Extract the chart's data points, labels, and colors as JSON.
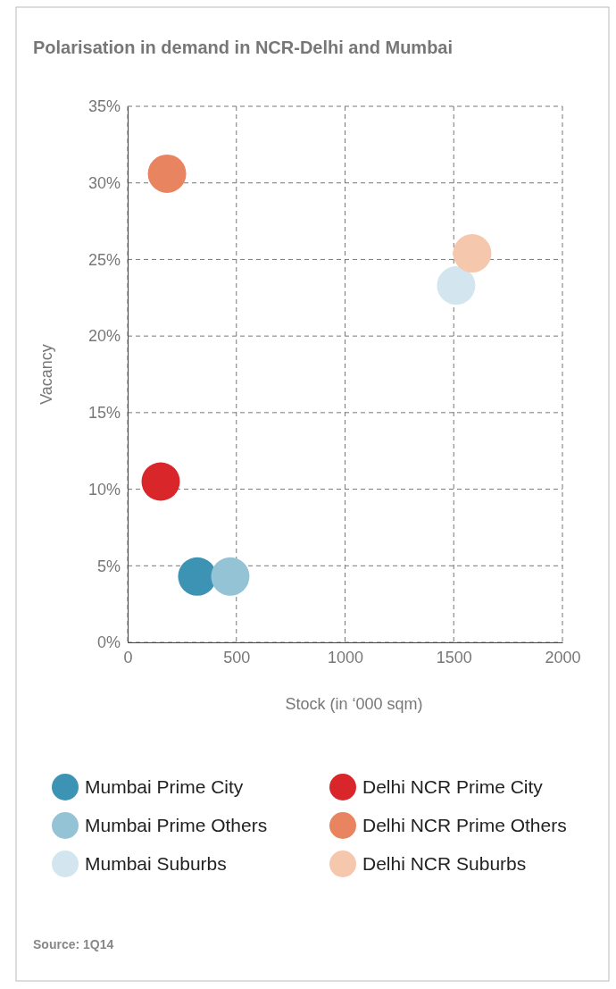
{
  "chart_data": {
    "type": "scatter",
    "title": "Polarisation in demand in NCR-Delhi and Mumbai",
    "xlabel": "Stock (in ‘000 sqm)",
    "ylabel": "Vacancy",
    "annotations": [
      "Source: 1Q14"
    ],
    "xlim": [
      0,
      2000
    ],
    "xticks": [
      0,
      500,
      1000,
      1500,
      2000
    ],
    "ylim": [
      0,
      35
    ],
    "yticks": [
      {
        "value": 0,
        "label": "0%"
      },
      {
        "value": 5,
        "label": "5%"
      },
      {
        "value": 10,
        "label": "10%"
      },
      {
        "value": 15,
        "label": "15%"
      },
      {
        "value": 20,
        "label": "20%"
      },
      {
        "value": 25,
        "label": "25%"
      },
      {
        "value": 30,
        "label": "30%"
      },
      {
        "value": 35,
        "label": "35%"
      }
    ],
    "grid": true,
    "legend": "bottom",
    "marker": "circle",
    "series": [
      {
        "name": "Mumbai Prime City",
        "color": "#3d93b4",
        "x": [
          320
        ],
        "values": [
          4.3
        ]
      },
      {
        "name": "Mumbai Prime Others",
        "color": "#94c3d6",
        "x": [
          472
        ],
        "values": [
          4.3
        ]
      },
      {
        "name": "Mumbai Suburbs",
        "color": "#d3e5ee",
        "x": [
          1511
        ],
        "values": [
          23.3
        ]
      },
      {
        "name": "Delhi NCR Prime City",
        "color": "#d9262b",
        "x": [
          152
        ],
        "values": [
          10.5
        ]
      },
      {
        "name": "Delhi NCR Prime Others",
        "color": "#e8845f",
        "x": [
          181
        ],
        "values": [
          30.6
        ]
      },
      {
        "name": "Delhi NCR Suburbs",
        "color": "#f5c7ad",
        "x": [
          1585
        ],
        "values": [
          25.4
        ]
      }
    ]
  }
}
